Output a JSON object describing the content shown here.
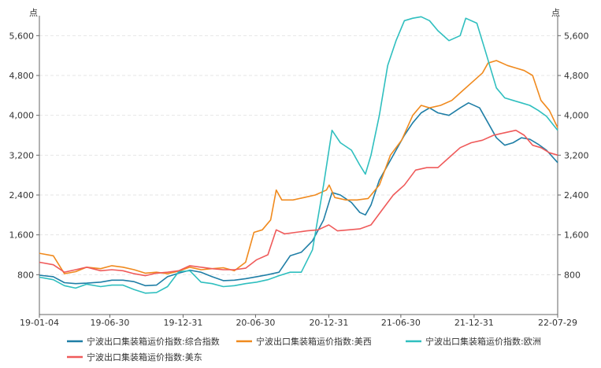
{
  "chart_data": {
    "type": "line",
    "title": "",
    "y_unit_left": "点",
    "y_unit_right": "点",
    "ylim": [
      0,
      6000
    ],
    "yticks": [
      800,
      1600,
      2400,
      3200,
      4000,
      4800,
      5600
    ],
    "ytick_labels": [
      "800",
      "1,600",
      "2,400",
      "3,200",
      "4,000",
      "4,800",
      "5,600"
    ],
    "xlim": [
      "2019-01-04",
      "2022-07-29"
    ],
    "xticks": [
      "2019-01-04",
      "2019-06-30",
      "2019-12-31",
      "2020-06-30",
      "2020-12-31",
      "2021-06-30",
      "2021-12-31",
      "2022-07-29"
    ],
    "xtick_labels": [
      "19-01-04",
      "19-06-30",
      "19-12-31",
      "20-06-30",
      "20-12-31",
      "21-06-30",
      "21-12-31",
      "22-07-29"
    ],
    "grid": true,
    "legend_position": "bottom",
    "series": [
      {
        "name": "宁波出口集装箱运价指数:综合指数",
        "color": "#1f7ea6",
        "points": [
          [
            "2019-01-04",
            790
          ],
          [
            "2019-02-08",
            760
          ],
          [
            "2019-03-08",
            640
          ],
          [
            "2019-04-05",
            620
          ],
          [
            "2019-05-03",
            630
          ],
          [
            "2019-06-07",
            650
          ],
          [
            "2019-07-05",
            690
          ],
          [
            "2019-08-02",
            690
          ],
          [
            "2019-08-30",
            660
          ],
          [
            "2019-09-27",
            580
          ],
          [
            "2019-10-25",
            590
          ],
          [
            "2019-11-22",
            760
          ],
          [
            "2019-12-20",
            830
          ],
          [
            "2020-01-17",
            890
          ],
          [
            "2020-02-14",
            850
          ],
          [
            "2020-03-13",
            760
          ],
          [
            "2020-04-10",
            680
          ],
          [
            "2020-05-08",
            690
          ],
          [
            "2020-06-05",
            720
          ],
          [
            "2020-07-03",
            760
          ],
          [
            "2020-07-31",
            800
          ],
          [
            "2020-08-28",
            850
          ],
          [
            "2020-09-25",
            1180
          ],
          [
            "2020-10-23",
            1250
          ],
          [
            "2020-11-20",
            1480
          ],
          [
            "2020-12-18",
            1900
          ],
          [
            "2021-01-08",
            2450
          ],
          [
            "2021-01-29",
            2400
          ],
          [
            "2021-02-26",
            2250
          ],
          [
            "2021-03-19",
            2050
          ],
          [
            "2021-04-02",
            2000
          ],
          [
            "2021-04-16",
            2200
          ],
          [
            "2021-05-07",
            2700
          ],
          [
            "2021-05-28",
            3000
          ],
          [
            "2021-06-18",
            3300
          ],
          [
            "2021-07-09",
            3600
          ],
          [
            "2021-07-30",
            3850
          ],
          [
            "2021-08-20",
            4050
          ],
          [
            "2021-09-10",
            4150
          ],
          [
            "2021-10-01",
            4050
          ],
          [
            "2021-10-29",
            4000
          ],
          [
            "2021-11-26",
            4150
          ],
          [
            "2021-12-17",
            4250
          ],
          [
            "2022-01-14",
            4150
          ],
          [
            "2022-02-04",
            3850
          ],
          [
            "2022-02-25",
            3550
          ],
          [
            "2022-03-18",
            3400
          ],
          [
            "2022-04-08",
            3450
          ],
          [
            "2022-04-29",
            3550
          ],
          [
            "2022-05-20",
            3520
          ],
          [
            "2022-06-10",
            3420
          ],
          [
            "2022-07-01",
            3300
          ],
          [
            "2022-07-29",
            3050
          ]
        ]
      },
      {
        "name": "宁波出口集装箱运价指数:美西",
        "color": "#f08a1e",
        "points": [
          [
            "2019-01-04",
            1230
          ],
          [
            "2019-02-08",
            1180
          ],
          [
            "2019-03-08",
            820
          ],
          [
            "2019-04-05",
            860
          ],
          [
            "2019-05-03",
            950
          ],
          [
            "2019-06-07",
            920
          ],
          [
            "2019-07-05",
            980
          ],
          [
            "2019-08-02",
            950
          ],
          [
            "2019-08-30",
            900
          ],
          [
            "2019-09-27",
            830
          ],
          [
            "2019-10-25",
            850
          ],
          [
            "2019-11-22",
            820
          ],
          [
            "2019-12-20",
            870
          ],
          [
            "2020-01-17",
            950
          ],
          [
            "2020-02-14",
            900
          ],
          [
            "2020-03-13",
            920
          ],
          [
            "2020-04-10",
            940
          ],
          [
            "2020-05-08",
            880
          ],
          [
            "2020-06-05",
            1050
          ],
          [
            "2020-06-26",
            1650
          ],
          [
            "2020-07-17",
            1700
          ],
          [
            "2020-08-07",
            1900
          ],
          [
            "2020-08-21",
            2500
          ],
          [
            "2020-09-04",
            2300
          ],
          [
            "2020-10-02",
            2300
          ],
          [
            "2020-10-30",
            2350
          ],
          [
            "2020-11-27",
            2400
          ],
          [
            "2020-12-25",
            2500
          ],
          [
            "2021-01-01",
            2600
          ],
          [
            "2021-01-15",
            2350
          ],
          [
            "2021-02-12",
            2300
          ],
          [
            "2021-03-12",
            2300
          ],
          [
            "2021-04-09",
            2330
          ],
          [
            "2021-05-07",
            2600
          ],
          [
            "2021-06-04",
            3200
          ],
          [
            "2021-07-02",
            3500
          ],
          [
            "2021-07-30",
            4000
          ],
          [
            "2021-08-20",
            4200
          ],
          [
            "2021-09-10",
            4150
          ],
          [
            "2021-10-08",
            4200
          ],
          [
            "2021-11-05",
            4300
          ],
          [
            "2021-12-03",
            4500
          ],
          [
            "2021-12-31",
            4700
          ],
          [
            "2022-01-21",
            4850
          ],
          [
            "2022-02-04",
            5050
          ],
          [
            "2022-02-25",
            5100
          ],
          [
            "2022-03-25",
            5000
          ],
          [
            "2022-04-15",
            4950
          ],
          [
            "2022-05-06",
            4900
          ],
          [
            "2022-05-27",
            4800
          ],
          [
            "2022-06-17",
            4300
          ],
          [
            "2022-07-08",
            4100
          ],
          [
            "2022-07-29",
            3750
          ]
        ]
      },
      {
        "name": "宁波出口集装箱运价指数:欧洲",
        "color": "#2fbfbf",
        "points": [
          [
            "2019-01-04",
            750
          ],
          [
            "2019-02-08",
            700
          ],
          [
            "2019-03-08",
            580
          ],
          [
            "2019-04-05",
            530
          ],
          [
            "2019-05-03",
            610
          ],
          [
            "2019-06-07",
            560
          ],
          [
            "2019-07-05",
            590
          ],
          [
            "2019-08-02",
            590
          ],
          [
            "2019-08-30",
            500
          ],
          [
            "2019-09-27",
            430
          ],
          [
            "2019-10-25",
            440
          ],
          [
            "2019-11-22",
            560
          ],
          [
            "2019-12-20",
            860
          ],
          [
            "2020-01-17",
            880
          ],
          [
            "2020-02-14",
            650
          ],
          [
            "2020-03-13",
            620
          ],
          [
            "2020-04-10",
            560
          ],
          [
            "2020-05-08",
            580
          ],
          [
            "2020-06-05",
            620
          ],
          [
            "2020-07-03",
            650
          ],
          [
            "2020-07-31",
            700
          ],
          [
            "2020-08-28",
            780
          ],
          [
            "2020-09-25",
            850
          ],
          [
            "2020-10-23",
            850
          ],
          [
            "2020-11-20",
            1300
          ],
          [
            "2020-12-18",
            2600
          ],
          [
            "2021-01-08",
            3700
          ],
          [
            "2021-01-29",
            3450
          ],
          [
            "2021-02-26",
            3300
          ],
          [
            "2021-03-19",
            3000
          ],
          [
            "2021-04-02",
            2820
          ],
          [
            "2021-04-16",
            3200
          ],
          [
            "2021-05-07",
            4000
          ],
          [
            "2021-05-28",
            5000
          ],
          [
            "2021-06-18",
            5500
          ],
          [
            "2021-07-09",
            5900
          ],
          [
            "2021-07-30",
            5950
          ],
          [
            "2021-08-20",
            5980
          ],
          [
            "2021-09-10",
            5900
          ],
          [
            "2021-10-01",
            5700
          ],
          [
            "2021-10-29",
            5500
          ],
          [
            "2021-11-26",
            5600
          ],
          [
            "2021-12-10",
            5950
          ],
          [
            "2022-01-07",
            5850
          ],
          [
            "2022-01-28",
            5300
          ],
          [
            "2022-02-25",
            4550
          ],
          [
            "2022-03-18",
            4350
          ],
          [
            "2022-04-08",
            4300
          ],
          [
            "2022-04-29",
            4250
          ],
          [
            "2022-05-20",
            4200
          ],
          [
            "2022-06-10",
            4100
          ],
          [
            "2022-07-01",
            3980
          ],
          [
            "2022-07-29",
            3700
          ]
        ]
      },
      {
        "name": "宁波出口集装箱运价指数:美东",
        "color": "#ef5a5a",
        "points": [
          [
            "2019-01-04",
            1050
          ],
          [
            "2019-02-08",
            1000
          ],
          [
            "2019-03-08",
            850
          ],
          [
            "2019-04-05",
            900
          ],
          [
            "2019-05-03",
            950
          ],
          [
            "2019-06-07",
            880
          ],
          [
            "2019-07-05",
            900
          ],
          [
            "2019-08-02",
            880
          ],
          [
            "2019-08-30",
            820
          ],
          [
            "2019-09-27",
            780
          ],
          [
            "2019-10-25",
            830
          ],
          [
            "2019-11-22",
            850
          ],
          [
            "2019-12-20",
            880
          ],
          [
            "2020-01-17",
            980
          ],
          [
            "2020-02-14",
            950
          ],
          [
            "2020-03-13",
            920
          ],
          [
            "2020-04-10",
            900
          ],
          [
            "2020-05-08",
            900
          ],
          [
            "2020-06-05",
            930
          ],
          [
            "2020-07-03",
            1100
          ],
          [
            "2020-07-31",
            1200
          ],
          [
            "2020-08-21",
            1700
          ],
          [
            "2020-09-11",
            1620
          ],
          [
            "2020-10-09",
            1650
          ],
          [
            "2020-11-06",
            1680
          ],
          [
            "2020-12-04",
            1700
          ],
          [
            "2020-12-31",
            1800
          ],
          [
            "2021-01-22",
            1680
          ],
          [
            "2021-02-19",
            1700
          ],
          [
            "2021-03-19",
            1720
          ],
          [
            "2021-04-16",
            1800
          ],
          [
            "2021-05-14",
            2100
          ],
          [
            "2021-06-11",
            2400
          ],
          [
            "2021-07-09",
            2600
          ],
          [
            "2021-08-06",
            2900
          ],
          [
            "2021-09-03",
            2950
          ],
          [
            "2021-10-01",
            2950
          ],
          [
            "2021-10-29",
            3150
          ],
          [
            "2021-11-26",
            3350
          ],
          [
            "2021-12-24",
            3450
          ],
          [
            "2022-01-21",
            3500
          ],
          [
            "2022-02-18",
            3600
          ],
          [
            "2022-03-18",
            3650
          ],
          [
            "2022-04-15",
            3700
          ],
          [
            "2022-05-06",
            3600
          ],
          [
            "2022-05-27",
            3400
          ],
          [
            "2022-06-17",
            3350
          ],
          [
            "2022-07-08",
            3250
          ],
          [
            "2022-07-29",
            3200
          ]
        ]
      }
    ]
  }
}
